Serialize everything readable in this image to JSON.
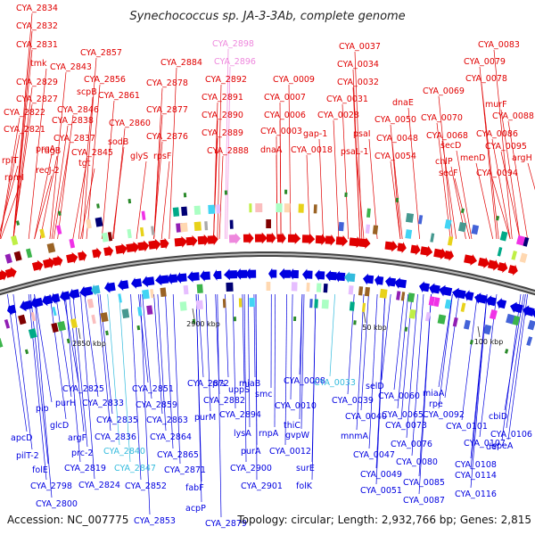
{
  "title": "Synechococcus sp. JA-3-3Ab, complete genome",
  "footer": {
    "accession": "Accession: NC_007775",
    "summary": "Topology: circular; Length: 2,932,766 bp; Genes: 2,815"
  },
  "colors": {
    "forward": "#e00000",
    "reverse": "#0000e0",
    "highlight_pink": "#ee88dd",
    "highlight_cyan": "#33bbdd",
    "backbone": "#777777"
  },
  "scale_labels": [
    {
      "text": "2850 kbp"
    },
    {
      "text": "2900 kbp"
    },
    {
      "text": "50 kbp"
    },
    {
      "text": "100 kbp"
    }
  ],
  "top_labels": [
    {
      "text": "CYA_2834",
      "color": "#e00000"
    },
    {
      "text": "CYA_2832",
      "color": "#e00000"
    },
    {
      "text": "CYA_2831",
      "color": "#e00000"
    },
    {
      "text": "tmk",
      "color": "#e00000"
    },
    {
      "text": "CYA_2829",
      "color": "#e00000"
    },
    {
      "text": "CYA_2827",
      "color": "#e00000"
    },
    {
      "text": "CYA_2822",
      "color": "#e00000"
    },
    {
      "text": "CYA_2821",
      "color": "#e00000"
    },
    {
      "text": "rplT",
      "color": "#e00000"
    },
    {
      "text": "rpmI",
      "color": "#e00000"
    },
    {
      "text": "proA",
      "color": "#e00000"
    },
    {
      "text": "recJ-2",
      "color": "#e00000"
    },
    {
      "text": "rdgB",
      "color": "#e00000"
    },
    {
      "text": "CYA_2838",
      "color": "#e00000"
    },
    {
      "text": "CYA_2837",
      "color": "#e00000"
    },
    {
      "text": "CYA_2843",
      "color": "#e00000"
    },
    {
      "text": "CYA_2846",
      "color": "#e00000"
    },
    {
      "text": "tgt",
      "color": "#e00000"
    },
    {
      "text": "CYA_2845",
      "color": "#e00000"
    },
    {
      "text": "scpB",
      "color": "#e00000"
    },
    {
      "text": "CYA_2857",
      "color": "#e00000"
    },
    {
      "text": "CYA_2856",
      "color": "#e00000"
    },
    {
      "text": "CYA_2861",
      "color": "#e00000"
    },
    {
      "text": "CYA_2860",
      "color": "#e00000"
    },
    {
      "text": "sodB",
      "color": "#e00000"
    },
    {
      "text": "glyS",
      "color": "#e00000"
    },
    {
      "text": "CYA_2884",
      "color": "#e00000"
    },
    {
      "text": "CYA_2878",
      "color": "#e00000"
    },
    {
      "text": "CYA_2877",
      "color": "#e00000"
    },
    {
      "text": "CYA_2876",
      "color": "#e00000"
    },
    {
      "text": "rpsF",
      "color": "#e00000"
    },
    {
      "text": "CYA_2898",
      "color": "#ee88dd"
    },
    {
      "text": "CYA_2896",
      "color": "#ee88dd"
    },
    {
      "text": "CYA_2892",
      "color": "#e00000"
    },
    {
      "text": "CYA_2891",
      "color": "#e00000"
    },
    {
      "text": "CYA_2890",
      "color": "#e00000"
    },
    {
      "text": "CYA_2889",
      "color": "#e00000"
    },
    {
      "text": "CYA_2888",
      "color": "#e00000"
    },
    {
      "text": "CYA_0009",
      "color": "#e00000"
    },
    {
      "text": "CYA_0007",
      "color": "#e00000"
    },
    {
      "text": "CYA_0006",
      "color": "#e00000"
    },
    {
      "text": "CYA_0003",
      "color": "#e00000"
    },
    {
      "text": "dnaA",
      "color": "#e00000"
    },
    {
      "text": "CYA_0018",
      "color": "#e00000"
    },
    {
      "text": "gap-1",
      "color": "#e00000"
    },
    {
      "text": "CYA_0037",
      "color": "#e00000"
    },
    {
      "text": "CYA_0034",
      "color": "#e00000"
    },
    {
      "text": "CYA_0032",
      "color": "#e00000"
    },
    {
      "text": "CYA_0031",
      "color": "#e00000"
    },
    {
      "text": "CYA_0028",
      "color": "#e00000"
    },
    {
      "text": "psaI",
      "color": "#e00000"
    },
    {
      "text": "psaL-1",
      "color": "#e00000"
    },
    {
      "text": "CYA_0050",
      "color": "#e00000"
    },
    {
      "text": "CYA_0048",
      "color": "#e00000"
    },
    {
      "text": "CYA_0054",
      "color": "#e00000"
    },
    {
      "text": "dnaE",
      "color": "#e00000"
    },
    {
      "text": "CYA_0083",
      "color": "#e00000"
    },
    {
      "text": "CYA_0079",
      "color": "#e00000"
    },
    {
      "text": "CYA_0078",
      "color": "#e00000"
    },
    {
      "text": "CYA_0069",
      "color": "#e00000"
    },
    {
      "text": "murF",
      "color": "#e00000"
    },
    {
      "text": "CYA_0070",
      "color": "#e00000"
    },
    {
      "text": "CYA_0088",
      "color": "#e00000"
    },
    {
      "text": "CYA_0068",
      "color": "#e00000"
    },
    {
      "text": "CYA_0086",
      "color": "#e00000"
    },
    {
      "text": "secD",
      "color": "#e00000"
    },
    {
      "text": "chlP",
      "color": "#e00000"
    },
    {
      "text": "menD",
      "color": "#e00000"
    },
    {
      "text": "CYA_0095",
      "color": "#e00000"
    },
    {
      "text": "argH",
      "color": "#e00000"
    },
    {
      "text": "secF",
      "color": "#e00000"
    },
    {
      "text": "CYA_0094",
      "color": "#e00000"
    }
  ],
  "bottom_labels": [
    {
      "text": "CYA_2825",
      "color": "#0000e0"
    },
    {
      "text": "CYA_2851",
      "color": "#0000e0"
    },
    {
      "text": "CYA_2872",
      "color": "#0000e0"
    },
    {
      "text": "prs",
      "color": "#0000e0"
    },
    {
      "text": "uppS",
      "color": "#0000e0"
    },
    {
      "text": "CYA_0008",
      "color": "#0000e0"
    },
    {
      "text": "CYA_0033",
      "color": "#33bbdd"
    },
    {
      "text": "selD",
      "color": "#0000e0"
    },
    {
      "text": "miaA",
      "color": "#0000e0"
    },
    {
      "text": "pip",
      "color": "#0000e0"
    },
    {
      "text": "purH",
      "color": "#0000e0"
    },
    {
      "text": "CYA_2833",
      "color": "#0000e0"
    },
    {
      "text": "CYA_2859",
      "color": "#0000e0"
    },
    {
      "text": "CYA_2882",
      "color": "#0000e0"
    },
    {
      "text": "miaB",
      "color": "#0000e0"
    },
    {
      "text": "smc",
      "color": "#0000e0"
    },
    {
      "text": "CYA_0010",
      "color": "#0000e0"
    },
    {
      "text": "CYA_0039",
      "color": "#0000e0"
    },
    {
      "text": "CYA_0060",
      "color": "#0000e0"
    },
    {
      "text": "rpe",
      "color": "#0000e0"
    },
    {
      "text": "glcD",
      "color": "#0000e0"
    },
    {
      "text": "CYA_2835",
      "color": "#0000e0"
    },
    {
      "text": "CYA_2863",
      "color": "#0000e0"
    },
    {
      "text": "purM",
      "color": "#0000e0"
    },
    {
      "text": "CYA_2894",
      "color": "#0000e0"
    },
    {
      "text": "thiC",
      "color": "#0000e0"
    },
    {
      "text": "CYA_0040",
      "color": "#0000e0"
    },
    {
      "text": "CYA_0065",
      "color": "#0000e0"
    },
    {
      "text": "CYA_0092",
      "color": "#0000e0"
    },
    {
      "text": "cbiD",
      "color": "#0000e0"
    },
    {
      "text": "argF",
      "color": "#0000e0"
    },
    {
      "text": "CYA_2836",
      "color": "#0000e0"
    },
    {
      "text": "CYA_2864",
      "color": "#0000e0"
    },
    {
      "text": "lysA",
      "color": "#0000e0"
    },
    {
      "text": "rnpA",
      "color": "#0000e0"
    },
    {
      "text": "gvpW",
      "color": "#0000e0"
    },
    {
      "text": "CYA_0073",
      "color": "#0000e0"
    },
    {
      "text": "CYA_0101",
      "color": "#0000e0"
    },
    {
      "text": "CYA_0107",
      "color": "#0000e0"
    },
    {
      "text": "apcD",
      "color": "#0000e0"
    },
    {
      "text": "prc-2",
      "color": "#0000e0"
    },
    {
      "text": "CYA_2840",
      "color": "#33bbdd"
    },
    {
      "text": "CYA_2865",
      "color": "#0000e0"
    },
    {
      "text": "purA",
      "color": "#0000e0"
    },
    {
      "text": "CYA_0012",
      "color": "#0000e0"
    },
    {
      "text": "mnmA",
      "color": "#0000e0"
    },
    {
      "text": "CYA_0076",
      "color": "#0000e0"
    },
    {
      "text": "CYA_0106",
      "color": "#0000e0"
    },
    {
      "text": "def",
      "color": "#0000e0"
    },
    {
      "text": "pilT-2",
      "color": "#0000e0"
    },
    {
      "text": "CYA_2819",
      "color": "#0000e0"
    },
    {
      "text": "CYA_2847",
      "color": "#33bbdd"
    },
    {
      "text": "CYA_2871",
      "color": "#0000e0"
    },
    {
      "text": "CYA_2900",
      "color": "#0000e0"
    },
    {
      "text": "surE",
      "color": "#0000e0"
    },
    {
      "text": "CYA_0047",
      "color": "#0000e0"
    },
    {
      "text": "CYA_0080",
      "color": "#0000e0"
    },
    {
      "text": "CYA_0108",
      "color": "#0000e0"
    },
    {
      "text": "speA",
      "color": "#0000e0"
    },
    {
      "text": "folE",
      "color": "#0000e0"
    },
    {
      "text": "CYA_2824",
      "color": "#0000e0"
    },
    {
      "text": "CYA_2852",
      "color": "#0000e0"
    },
    {
      "text": "fabF",
      "color": "#0000e0"
    },
    {
      "text": "CYA_2901",
      "color": "#0000e0"
    },
    {
      "text": "folK",
      "color": "#0000e0"
    },
    {
      "text": "CYA_0049",
      "color": "#0000e0"
    },
    {
      "text": "CYA_0085",
      "color": "#0000e0"
    },
    {
      "text": "CYA_0114",
      "color": "#0000e0"
    },
    {
      "text": "CYA_2798",
      "color": "#0000e0"
    },
    {
      "text": "acpP",
      "color": "#0000e0"
    },
    {
      "text": "CYA_0051",
      "color": "#0000e0"
    },
    {
      "text": "CYA_0116",
      "color": "#0000e0"
    },
    {
      "text": "CYA_2800",
      "color": "#0000e0"
    },
    {
      "text": "CYA_0087",
      "color": "#0000e0"
    },
    {
      "text": "CYA_2853",
      "color": "#0000e0"
    },
    {
      "text": "CYA_2879",
      "color": "#0000e0"
    }
  ]
}
